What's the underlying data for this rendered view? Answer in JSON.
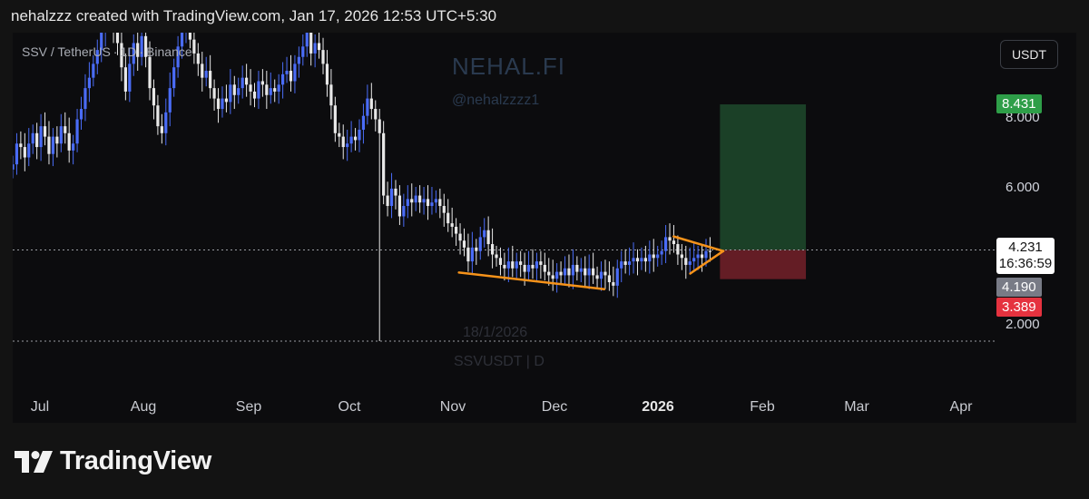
{
  "header": {
    "attribution": "nehalzzz created with TradingView.com, Jan 17, 2026 12:53 UTC+5:30"
  },
  "chart_panel": {
    "symbol_parts": [
      "SSV / TetherUS",
      "1D",
      "Binance"
    ],
    "currency_button": "USDT",
    "watermark_title": "NEHAL.FI",
    "watermark_handle": "@nehalzzzz1",
    "watermark_date": "18/1/2026",
    "watermark_symbol": "SSVUSDT | D"
  },
  "footer": {
    "brand": "TradingView"
  },
  "colors": {
    "up": "#4a6cf7",
    "down": "#e8e8e8",
    "target_zone": "#1e4a2b",
    "stop_zone": "#6e1f28",
    "pattern": "#f7931a",
    "target_tag": "#2e9e48",
    "stop_tag": "#e5323f",
    "current_tag": "#787b86"
  },
  "chart_data": {
    "type": "candlestick",
    "symbol": "SSVUSDT",
    "timeframe": "1D",
    "exchange": "Binance",
    "y_axis_ticks": [
      "8.000",
      "6.000",
      "2.000"
    ],
    "y_range": [
      1.6,
      10.5
    ],
    "x_axis_ticks": [
      "Jul",
      "Aug",
      "Sep",
      "Oct",
      "Nov",
      "Dec",
      "2026",
      "Feb",
      "Mar",
      "Apr"
    ],
    "x_range": [
      "2025-06-20",
      "2026-04-12"
    ],
    "price_labels": {
      "target": "8.431",
      "last": "4.231",
      "countdown": "16:36:59",
      "current": "4.190",
      "stop": "3.389"
    },
    "last_price": 4.231,
    "position_tool": {
      "type": "long",
      "entry": 4.231,
      "target": 8.431,
      "stop": 3.389,
      "start": "2026-01-20",
      "end": "2026-02-15"
    },
    "pattern_lines": [
      {
        "from": [
          "2025-11-02",
          3.58
        ],
        "to": [
          "2025-12-16",
          3.1
        ]
      },
      {
        "from": [
          "2026-01-06",
          4.62
        ],
        "to": [
          "2026-01-21",
          4.2
        ]
      },
      {
        "from": [
          "2026-01-21",
          4.2
        ],
        "to": [
          "2026-01-11",
          3.55
        ]
      }
    ],
    "horizontal_lines": [
      {
        "price": 1.6,
        "style": "dotted"
      }
    ],
    "closes": [
      6.7,
      7.3,
      7.2,
      6.9,
      7.3,
      7.6,
      7.2,
      7.8,
      7.5,
      7.0,
      7.5,
      7.3,
      7.8,
      7.6,
      7.1,
      7.3,
      8.0,
      8.3,
      8.9,
      9.2,
      9.6,
      10.0,
      10.5,
      10.8,
      11.0,
      10.5,
      10.2,
      9.5,
      8.8,
      9.6,
      10.2,
      9.8,
      10.4,
      9.8,
      8.9,
      8.4,
      7.8,
      7.6,
      8.2,
      8.9,
      9.5,
      10.1,
      10.6,
      10.8,
      10.3,
      9.9,
      9.6,
      9.2,
      9.4,
      8.9,
      8.6,
      8.3,
      8.6,
      8.5,
      9.0,
      8.7,
      8.9,
      9.2,
      9.0,
      8.8,
      8.6,
      9.1,
      9.0,
      8.7,
      8.9,
      8.8,
      9.0,
      9.3,
      9.4,
      9.1,
      9.6,
      9.8,
      10.1,
      10.5,
      9.9,
      10.2,
      10.0,
      9.6,
      9.0,
      8.4,
      7.6,
      7.5,
      7.2,
      7.3,
      7.5,
      7.4,
      7.7,
      8.1,
      8.6,
      8.3,
      8.0,
      7.6,
      5.8,
      5.5,
      6.0,
      5.8,
      5.2,
      5.5,
      5.7,
      5.6,
      5.8,
      5.6,
      5.7,
      5.5,
      5.6,
      5.7,
      5.5,
      5.3,
      5.0,
      4.9,
      4.7,
      4.5,
      4.3,
      3.9,
      4.3,
      4.2,
      4.6,
      4.8,
      4.4,
      4.1,
      4.0,
      3.8,
      3.7,
      3.9,
      3.7,
      3.9,
      3.8,
      3.6,
      3.8,
      3.7,
      3.9,
      3.8,
      3.6,
      3.5,
      3.4,
      3.6,
      3.5,
      3.7,
      3.5,
      3.8,
      3.6,
      3.7,
      3.5,
      3.7,
      3.5,
      3.4,
      3.6,
      3.5,
      3.3,
      3.2,
      3.7,
      3.9,
      3.8,
      3.9,
      4.0,
      3.9,
      4.0,
      3.9,
      4.1,
      4.0,
      4.1,
      4.2,
      4.6,
      4.5,
      4.4,
      4.1,
      4.0,
      3.8,
      3.9,
      4.0,
      4.1,
      4.0,
      4.2,
      4.19
    ]
  }
}
